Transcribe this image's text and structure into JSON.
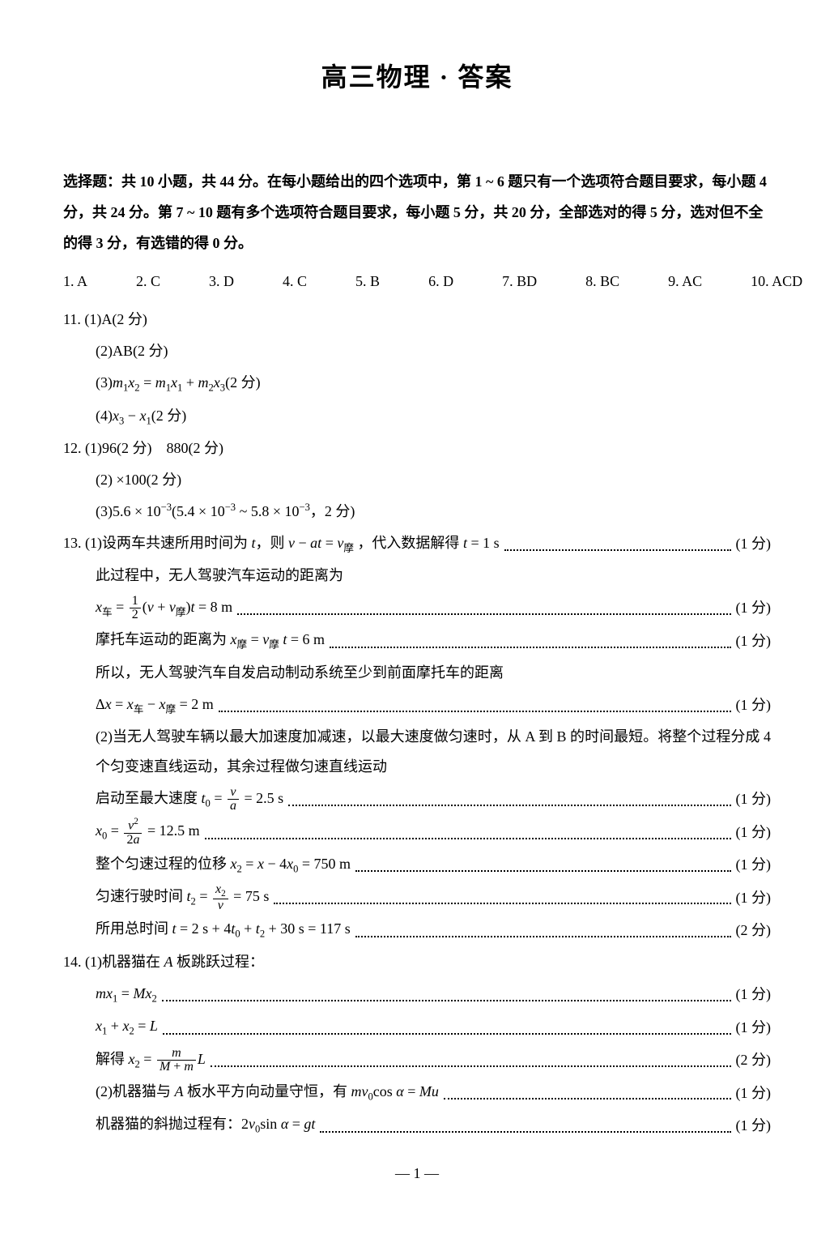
{
  "title": "高三物理 · 答案",
  "instructions": "选择题：共 10 小题，共 44 分。在每小题给出的四个选项中，第 1 ~ 6 题只有一个选项符合题目要求，每小题 4 分，共 24 分。第 7 ~ 10 题有多个选项符合题目要求，每小题 5 分，共 20 分，全部选对的得 5 分，选对但不全的得 3 分，有选错的得 0 分。",
  "mc": [
    {
      "n": "1",
      "a": "A"
    },
    {
      "n": "2",
      "a": "C"
    },
    {
      "n": "3",
      "a": "D"
    },
    {
      "n": "4",
      "a": "C"
    },
    {
      "n": "5",
      "a": "B"
    },
    {
      "n": "6",
      "a": "D"
    },
    {
      "n": "7",
      "a": "BD"
    },
    {
      "n": "8",
      "a": "BC"
    },
    {
      "n": "9",
      "a": "AC"
    },
    {
      "n": "10",
      "a": "ACD"
    }
  ],
  "q11": {
    "l1": "11. (1)A(2 分)",
    "l2": "(2)AB(2 分)",
    "l3a": "(3)",
    "l3eq": "m₁x₂ = m₁x₁ + m₂x₃",
    "l3b": "(2 分)",
    "l4a": "(4)",
    "l4eq": "x₃ − x₁",
    "l4b": "(2 分)"
  },
  "q12": {
    "l1": "12. (1)96(2 分)　880(2 分)",
    "l2": "(2) ×100(2 分)",
    "l3": "(3)5.6 × 10⁻³(5.4 × 10⁻³ ~ 5.8 × 10⁻³，2 分)"
  },
  "q13": {
    "l1_prefix": "13. (1)设两车共速所用时间为 ",
    "l1_mid": "，则 ",
    "l1_eq": "v − at = v",
    "l1_sub": "摩",
    "l1_end": "，代入数据解得 t = 1 s",
    "l1_score": "(1 分)",
    "l2": "此过程中，无人驾驶汽车运动的距离为",
    "l3_pre": "x",
    "l3_sub1": "车",
    "l3_sub2": "摩",
    "l3_eq2": ")t = 8 m",
    "l3_score": "(1 分)",
    "l4_txt": "摩托车运动的距离为 x",
    "l4_sub1": "摩",
    "l4_mid": " = v",
    "l4_sub2": "摩",
    "l4_end": " t = 6 m",
    "l4_score": "(1 分)",
    "l5": "所以，无人驾驶汽车自发启动制动系统至少到前面摩托车的距离",
    "l6_txt": "Δx = x",
    "l6_sub1": "车",
    "l6_mid": " − x",
    "l6_sub2": "摩",
    "l6_end": " = 2 m",
    "l6_score": "(1 分)",
    "l7": "(2)当无人驾驶车辆以最大加速度加减速，以最大速度做匀速时，从 A 到 B 的时间最短。将整个过程分成 4 个匀变速直线运动，其余过程做匀速直线运动",
    "l8_txt": "启动至最大速度 t",
    "l8_end": " = 2.5 s",
    "l8_score": "(1 分)",
    "l9_txt": "x",
    "l9_end": " = 12.5 m",
    "l9_score": "(1 分)",
    "l10_txt": "整个匀速过程的位移 x₂ = x − 4x₀ = 750 m",
    "l10_score": "(1 分)",
    "l11_txt": "匀速行驶时间 t",
    "l11_end": " = 75 s",
    "l11_score": "(1 分)",
    "l12_txt": "所用总时间 t = 2 s + 4t₀ + t₂ + 30 s = 117 s",
    "l12_score": "(2 分)"
  },
  "q14": {
    "l1": "14. (1)机器猫在 A 板跳跃过程：",
    "l2_txt": "mx₁ = Mx₂",
    "l2_score": "(1 分)",
    "l3_txt": "x₁ + x₂ = L",
    "l3_score": "(1 分)",
    "l4_txt": "解得 x",
    "l4_end": "L",
    "l4_score": "(2 分)",
    "l5_txt": "(2)机器猫与 A 板水平方向动量守恒，有 mv₀cos α = Mu",
    "l5_score": "(1 分)",
    "l6_txt": "机器猫的斜抛过程有：2v₀sin α = gt",
    "l6_score": "(1 分)"
  },
  "pagenum": "— 1 —"
}
